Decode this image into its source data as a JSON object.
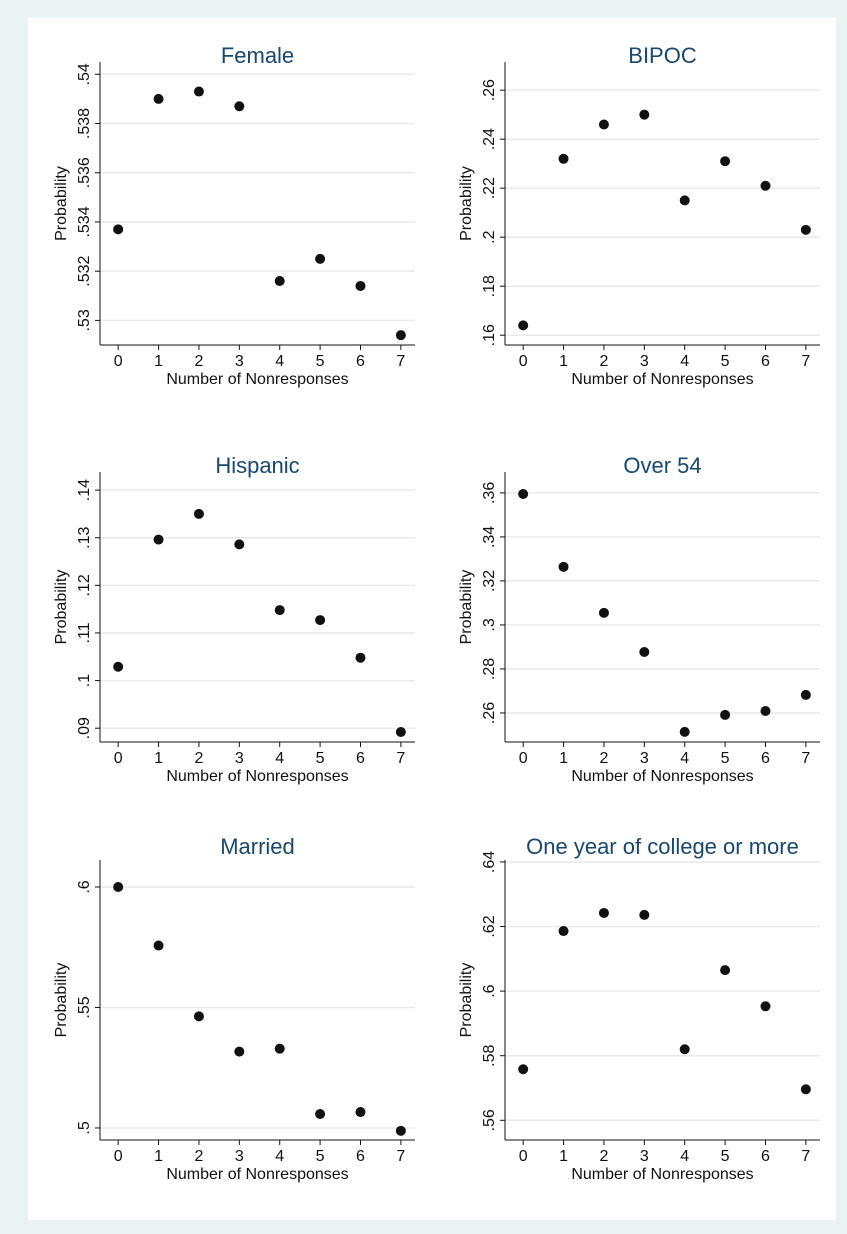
{
  "chart_data": [
    {
      "type": "scatter",
      "title": "Female",
      "x_label": "Number of Nonresponses",
      "y_label": "Probability",
      "x": [
        0,
        1,
        2,
        3,
        4,
        5,
        6,
        7
      ],
      "values": [
        0.5337,
        0.539,
        0.5393,
        0.5387,
        0.5316,
        0.5325,
        0.5314,
        0.5294
      ],
      "color": "#111111",
      "xlim": [
        -0.45,
        7.35
      ],
      "ylim": [
        0.529,
        0.5405
      ],
      "xticks": [
        0,
        1,
        2,
        3,
        4,
        5,
        6,
        7
      ],
      "yticks": [
        {
          "value": 0.53,
          "label": ".53"
        },
        {
          "value": 0.532,
          "label": ".532"
        },
        {
          "value": 0.534,
          "label": ".534"
        },
        {
          "value": 0.536,
          "label": ".536"
        },
        {
          "value": 0.538,
          "label": ".538"
        },
        {
          "value": 0.54,
          "label": ".54"
        }
      ],
      "grid": true
    },
    {
      "type": "scatter",
      "title": "BIPOC",
      "x_label": "Number of Nonresponses",
      "y_label": "Probability",
      "x": [
        0,
        1,
        2,
        3,
        4,
        5,
        6,
        7
      ],
      "values": [
        0.164,
        0.232,
        0.246,
        0.25,
        0.215,
        0.231,
        0.221,
        0.203
      ],
      "color": "#111111",
      "xlim": [
        -0.45,
        7.35
      ],
      "ylim": [
        0.156,
        0.2715
      ],
      "xticks": [
        0,
        1,
        2,
        3,
        4,
        5,
        6,
        7
      ],
      "yticks": [
        {
          "value": 0.16,
          "label": ".16"
        },
        {
          "value": 0.18,
          "label": ".18"
        },
        {
          "value": 0.2,
          "label": ".2"
        },
        {
          "value": 0.22,
          "label": ".22"
        },
        {
          "value": 0.24,
          "label": ".24"
        },
        {
          "value": 0.26,
          "label": ".26"
        }
      ],
      "grid": true
    },
    {
      "type": "scatter",
      "title": "Hispanic",
      "x_label": "Number of Nonresponses",
      "y_label": "Probability",
      "x": [
        0,
        1,
        2,
        3,
        4,
        5,
        6,
        7
      ],
      "values": [
        0.1029,
        0.1296,
        0.135,
        0.1286,
        0.1148,
        0.1127,
        0.1048,
        0.0892
      ],
      "color": "#111111",
      "xlim": [
        -0.45,
        7.35
      ],
      "ylim": [
        0.0871,
        0.1438
      ],
      "xticks": [
        0,
        1,
        2,
        3,
        4,
        5,
        6,
        7
      ],
      "yticks": [
        {
          "value": 0.09,
          "label": ".09"
        },
        {
          "value": 0.1,
          "label": ".1"
        },
        {
          "value": 0.11,
          "label": ".11"
        },
        {
          "value": 0.12,
          "label": ".12"
        },
        {
          "value": 0.13,
          "label": ".13"
        },
        {
          "value": 0.14,
          "label": ".14"
        }
      ],
      "grid": true
    },
    {
      "type": "scatter",
      "title": "Over 54",
      "x_label": "Number of Nonresponses",
      "y_label": "Probability",
      "x": [
        0,
        1,
        2,
        3,
        4,
        5,
        6,
        7
      ],
      "values": [
        0.3595,
        0.3264,
        0.3055,
        0.2877,
        0.2514,
        0.2591,
        0.2609,
        0.2682
      ],
      "color": "#111111",
      "xlim": [
        -0.45,
        7.35
      ],
      "ylim": [
        0.2468,
        0.3695
      ],
      "xticks": [
        0,
        1,
        2,
        3,
        4,
        5,
        6,
        7
      ],
      "yticks": [
        {
          "value": 0.26,
          "label": ".26"
        },
        {
          "value": 0.28,
          "label": ".28"
        },
        {
          "value": 0.3,
          "label": ".3"
        },
        {
          "value": 0.32,
          "label": ".32"
        },
        {
          "value": 0.34,
          "label": ".34"
        },
        {
          "value": 0.36,
          "label": ".36"
        }
      ],
      "grid": true
    },
    {
      "type": "scatter",
      "title": "Married",
      "x_label": "Number of Nonresponses",
      "y_label": "Probability",
      "x": [
        0,
        1,
        2,
        3,
        4,
        5,
        6,
        7
      ],
      "values": [
        0.6,
        0.5757,
        0.5463,
        0.5317,
        0.5329,
        0.5058,
        0.5066,
        0.4988
      ],
      "color": "#111111",
      "xlim": [
        -0.45,
        7.35
      ],
      "ylim": [
        0.495,
        0.6112
      ],
      "xticks": [
        0,
        1,
        2,
        3,
        4,
        5,
        6,
        7
      ],
      "yticks": [
        {
          "value": 0.5,
          "label": ".5"
        },
        {
          "value": 0.55,
          "label": ".55"
        },
        {
          "value": 0.6,
          "label": ".6"
        }
      ],
      "grid": true
    },
    {
      "type": "scatter",
      "title": "One year of college or more",
      "x_label": "Number of Nonresponses",
      "y_label": "Probability",
      "x": [
        0,
        1,
        2,
        3,
        4,
        5,
        6,
        7
      ],
      "values": [
        0.5758,
        0.6186,
        0.6242,
        0.6236,
        0.582,
        0.6065,
        0.5953,
        0.5696
      ],
      "color": "#111111",
      "xlim": [
        -0.45,
        7.35
      ],
      "ylim": [
        0.5539,
        0.6406
      ],
      "xticks": [
        0,
        1,
        2,
        3,
        4,
        5,
        6,
        7
      ],
      "yticks": [
        {
          "value": 0.56,
          "label": ".56"
        },
        {
          "value": 0.58,
          "label": ".58"
        },
        {
          "value": 0.6,
          "label": ".6"
        },
        {
          "value": 0.62,
          "label": ".62"
        },
        {
          "value": 0.64,
          "label": ".64"
        }
      ],
      "grid": true
    }
  ]
}
